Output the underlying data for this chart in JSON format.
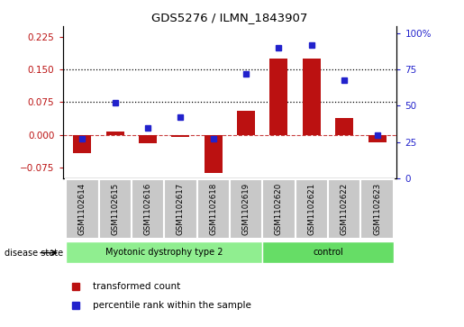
{
  "title": "GDS5276 / ILMN_1843907",
  "samples": [
    "GSM1102614",
    "GSM1102615",
    "GSM1102616",
    "GSM1102617",
    "GSM1102618",
    "GSM1102619",
    "GSM1102620",
    "GSM1102621",
    "GSM1102622",
    "GSM1102623"
  ],
  "transformed_count": [
    -0.043,
    0.008,
    -0.02,
    -0.005,
    -0.088,
    0.055,
    0.175,
    0.175,
    0.038,
    -0.018
  ],
  "percentile_rank": [
    27,
    52,
    35,
    42,
    27,
    72,
    90,
    92,
    68,
    30
  ],
  "ylim_left": [
    -0.1,
    0.25
  ],
  "ylim_right": [
    0,
    105
  ],
  "yticks_left": [
    -0.075,
    0,
    0.075,
    0.15,
    0.225
  ],
  "yticks_right": [
    0,
    25,
    50,
    75,
    100
  ],
  "bar_color": "#BB1111",
  "dot_color": "#2222CC",
  "dotted_lines": [
    0.075,
    0.15
  ],
  "disease_group1_label": "Myotonic dystrophy type 2",
  "disease_group1_count": 6,
  "disease_group2_label": "control",
  "disease_group2_count": 4,
  "disease_color1": "#90EE90",
  "disease_color2": "#66DD66",
  "sample_box_color": "#C8C8C8",
  "legend_items": [
    {
      "label": "transformed count",
      "color": "#BB1111"
    },
    {
      "label": "percentile rank within the sample",
      "color": "#2222CC"
    }
  ],
  "disease_state_label": "disease state"
}
